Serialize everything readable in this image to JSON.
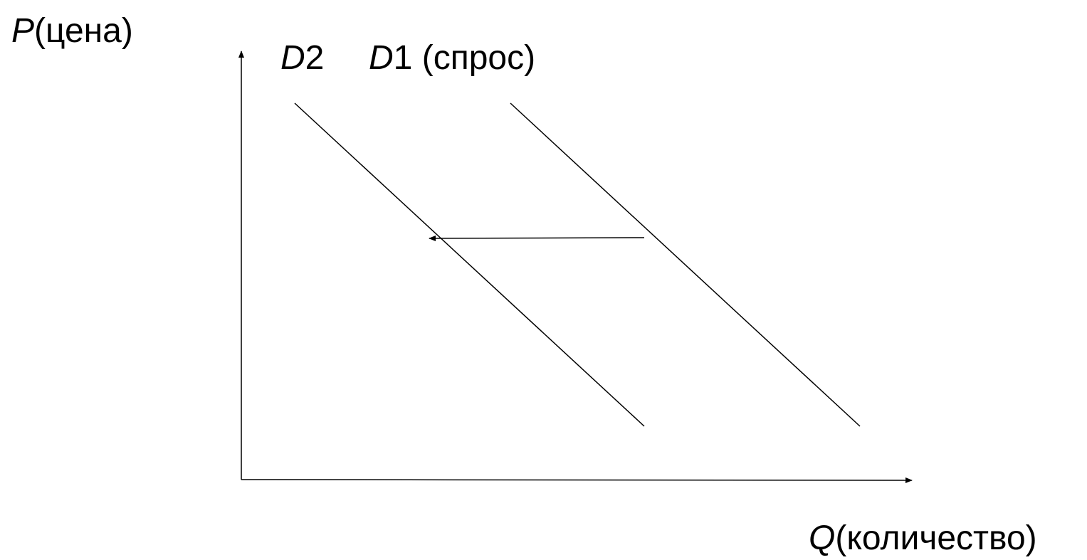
{
  "axes": {
    "y": {
      "symbol": "P",
      "text": "(цена)"
    },
    "x": {
      "symbol": "Q",
      "text": "(количество)"
    }
  },
  "curves": {
    "d2": {
      "symbol": "D",
      "index": "2",
      "text": ""
    },
    "d1": {
      "symbol": "D",
      "index": "1",
      "text": " (спрос)"
    }
  },
  "colors": {
    "line": "#000000",
    "background": "#ffffff"
  }
}
